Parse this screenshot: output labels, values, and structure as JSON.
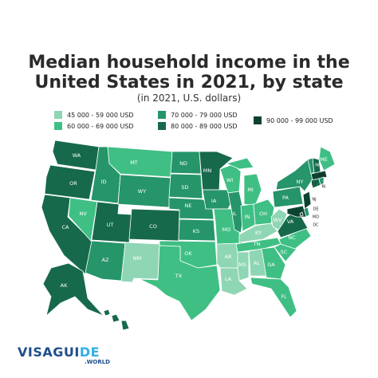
{
  "title_line1": "Median household income in the",
  "title_line2": "United States in 2021, by state",
  "subtitle": "(in 2021, U.S. dollars)",
  "legend": [
    {
      "label": "45 000 - 59 000 USD",
      "color": "#8fd6b4"
    },
    {
      "label": "60 000 - 69 000 USD",
      "color": "#3fbf84"
    },
    {
      "label": "70 000 - 79 000 USD",
      "color": "#26956a"
    },
    {
      "label": "80 000 - 89 000 USD",
      "color": "#17694b"
    },
    {
      "label": "90 000 - 99 000 USD",
      "color": "#0c4330"
    }
  ],
  "logo": {
    "main": "VISAGUI",
    "accent": "DE",
    "sub": ".WORLD"
  },
  "states": [
    {
      "code": "WA",
      "tier": 3
    },
    {
      "code": "OR",
      "tier": 3
    },
    {
      "code": "CA",
      "tier": 3
    },
    {
      "code": "NV",
      "tier": 1
    },
    {
      "code": "ID",
      "tier": 2
    },
    {
      "code": "MT",
      "tier": 1
    },
    {
      "code": "WY",
      "tier": 2
    },
    {
      "code": "UT",
      "tier": 3
    },
    {
      "code": "CO",
      "tier": 3
    },
    {
      "code": "AZ",
      "tier": 2
    },
    {
      "code": "NM",
      "tier": 0
    },
    {
      "code": "ND",
      "tier": 2
    },
    {
      "code": "SD",
      "tier": 2
    },
    {
      "code": "NE",
      "tier": 2
    },
    {
      "code": "KS",
      "tier": 2
    },
    {
      "code": "OK",
      "tier": 1
    },
    {
      "code": "TX",
      "tier": 1
    },
    {
      "code": "MN",
      "tier": 3
    },
    {
      "code": "IA",
      "tier": 2
    },
    {
      "code": "MO",
      "tier": 1
    },
    {
      "code": "AR",
      "tier": 0
    },
    {
      "code": "LA",
      "tier": 0
    },
    {
      "code": "WI",
      "tier": 1
    },
    {
      "code": "IL",
      "tier": 2
    },
    {
      "code": "MI",
      "tier": 1
    },
    {
      "code": "IN",
      "tier": 1
    },
    {
      "code": "OH",
      "tier": 1
    },
    {
      "code": "KY",
      "tier": 0
    },
    {
      "code": "TN",
      "tier": 1
    },
    {
      "code": "MS",
      "tier": 0
    },
    {
      "code": "AL",
      "tier": 0
    },
    {
      "code": "GA",
      "tier": 1
    },
    {
      "code": "FL",
      "tier": 1
    },
    {
      "code": "SC",
      "tier": 1
    },
    {
      "code": "NC",
      "tier": 1
    },
    {
      "code": "WV",
      "tier": 0
    },
    {
      "code": "VA",
      "tier": 3
    },
    {
      "code": "PA",
      "tier": 2
    },
    {
      "code": "NY",
      "tier": 2
    },
    {
      "code": "ME",
      "tier": 1
    },
    {
      "code": "VT",
      "tier": 2
    },
    {
      "code": "NH",
      "tier": 3
    },
    {
      "code": "MA",
      "tier": 4
    },
    {
      "code": "CT",
      "tier": 3
    },
    {
      "code": "RI",
      "tier": 2
    },
    {
      "code": "NJ",
      "tier": 4
    },
    {
      "code": "DE",
      "tier": 2
    },
    {
      "code": "MD",
      "tier": 4
    },
    {
      "code": "DC",
      "tier": 4
    },
    {
      "code": "AK",
      "tier": 3
    },
    {
      "code": "HI",
      "tier": 3
    }
  ]
}
